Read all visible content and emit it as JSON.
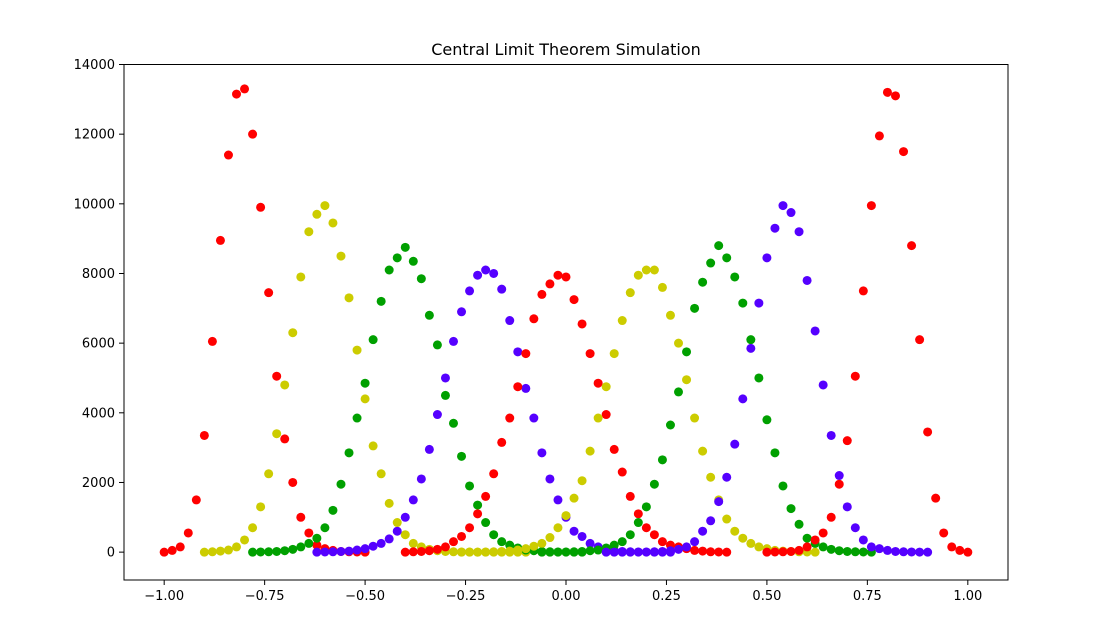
{
  "chart_data": {
    "type": "scatter",
    "title": "Central Limit Theorem Simulation",
    "xlabel": "",
    "ylabel": "",
    "xlim": [
      -1.1,
      1.1
    ],
    "ylim": [
      -800,
      14000
    ],
    "xticks": [
      -1.0,
      -0.75,
      -0.5,
      -0.25,
      0.0,
      0.25,
      0.5,
      0.75,
      1.0
    ],
    "xtick_labels": [
      "−1.00",
      "−0.75",
      "−0.50",
      "−0.25",
      "0.00",
      "0.25",
      "0.50",
      "0.75",
      "1.00"
    ],
    "yticks": [
      0,
      2000,
      4000,
      6000,
      8000,
      10000,
      12000,
      14000
    ],
    "ytick_labels": [
      "0",
      "2000",
      "4000",
      "6000",
      "8000",
      "10000",
      "12000",
      "14000"
    ],
    "grid": false,
    "series": [
      {
        "color": "#ff0000",
        "x": [
          -1.0,
          -0.98,
          -0.96,
          -0.94,
          -0.92,
          -0.9,
          -0.88,
          -0.86,
          -0.84,
          -0.82,
          -0.8,
          -0.78,
          -0.76,
          -0.74,
          -0.72,
          -0.7,
          -0.68,
          -0.66,
          -0.64,
          -0.62,
          -0.6,
          -0.58,
          -0.56,
          -0.54,
          -0.52,
          -0.5
        ],
        "y": [
          0,
          50,
          150,
          550,
          1500,
          3350,
          6050,
          8950,
          11400,
          13150,
          13300,
          12000,
          9900,
          7450,
          5050,
          3250,
          2000,
          1000,
          550,
          200,
          100,
          50,
          20,
          10,
          5,
          0
        ]
      },
      {
        "color": "#cccc00",
        "x": [
          -0.9,
          -0.88,
          -0.86,
          -0.84,
          -0.82,
          -0.8,
          -0.78,
          -0.76,
          -0.74,
          -0.72,
          -0.7,
          -0.68,
          -0.66,
          -0.64,
          -0.62,
          -0.6,
          -0.58,
          -0.56,
          -0.54,
          -0.52,
          -0.5,
          -0.48,
          -0.46,
          -0.44,
          -0.42,
          -0.4,
          -0.38,
          -0.36,
          -0.34,
          -0.32,
          -0.3,
          -0.28,
          -0.26,
          -0.24,
          -0.22,
          -0.2,
          -0.18,
          -0.16,
          -0.14,
          -0.12,
          -0.1
        ],
        "y": [
          0,
          10,
          30,
          60,
          150,
          350,
          700,
          1300,
          2250,
          3400,
          4800,
          6300,
          7900,
          9200,
          9700,
          9950,
          9450,
          8500,
          7300,
          5800,
          4400,
          3050,
          2250,
          1400,
          850,
          500,
          250,
          150,
          80,
          40,
          20,
          10,
          5,
          5,
          2,
          0,
          0,
          0,
          0,
          0,
          0
        ]
      },
      {
        "color": "#00a000",
        "x": [
          -0.78,
          -0.76,
          -0.74,
          -0.72,
          -0.7,
          -0.68,
          -0.66,
          -0.64,
          -0.62,
          -0.6,
          -0.58,
          -0.56,
          -0.54,
          -0.52,
          -0.5,
          -0.48,
          -0.46,
          -0.44,
          -0.42,
          -0.4,
          -0.38,
          -0.36,
          -0.34,
          -0.32,
          -0.3,
          -0.28,
          -0.26,
          -0.24,
          -0.22,
          -0.2,
          -0.18,
          -0.16,
          -0.14,
          -0.12,
          -0.1,
          -0.08,
          -0.06,
          -0.04,
          -0.02,
          0.0,
          0.02,
          0.04
        ],
        "y": [
          0,
          5,
          10,
          20,
          40,
          80,
          150,
          250,
          400,
          700,
          1200,
          1950,
          2850,
          3850,
          4850,
          6100,
          7200,
          8100,
          8450,
          8750,
          8350,
          7850,
          6800,
          5950,
          4500,
          3700,
          2750,
          1900,
          1350,
          850,
          500,
          300,
          200,
          120,
          60,
          40,
          20,
          10,
          5,
          2,
          0,
          0
        ]
      },
      {
        "color": "#5500ff",
        "x": [
          -0.62,
          -0.6,
          -0.58,
          -0.56,
          -0.54,
          -0.52,
          -0.5,
          -0.48,
          -0.46,
          -0.44,
          -0.42,
          -0.4,
          -0.38,
          -0.36,
          -0.34,
          -0.32,
          -0.3,
          -0.28,
          -0.26,
          -0.24,
          -0.22,
          -0.2,
          -0.18,
          -0.16,
          -0.14,
          -0.12,
          -0.1,
          -0.08,
          -0.06,
          -0.04,
          -0.02,
          0.0,
          0.02,
          0.04,
          0.06,
          0.08,
          0.1,
          0.12,
          0.14,
          0.16,
          0.18,
          0.2,
          0.22,
          0.24,
          0.26
        ],
        "y": [
          0,
          5,
          10,
          20,
          30,
          60,
          100,
          170,
          250,
          380,
          600,
          1000,
          1500,
          2100,
          2950,
          3950,
          5000,
          6050,
          6900,
          7500,
          7950,
          8100,
          8000,
          7550,
          6650,
          5750,
          4700,
          3850,
          2850,
          2100,
          1500,
          1000,
          600,
          450,
          250,
          150,
          100,
          50,
          20,
          10,
          5,
          2,
          0,
          0,
          0
        ]
      },
      {
        "color": "#ff0000",
        "x": [
          -0.4,
          -0.38,
          -0.36,
          -0.34,
          -0.32,
          -0.3,
          -0.28,
          -0.26,
          -0.24,
          -0.22,
          -0.2,
          -0.18,
          -0.16,
          -0.14,
          -0.12,
          -0.1,
          -0.08,
          -0.06,
          -0.04,
          -0.02,
          0.0,
          0.02,
          0.04,
          0.06,
          0.08,
          0.1,
          0.12,
          0.14,
          0.16,
          0.18,
          0.2,
          0.22,
          0.24,
          0.26,
          0.28,
          0.3,
          0.32,
          0.34,
          0.36,
          0.38,
          0.4
        ],
        "y": [
          0,
          10,
          20,
          40,
          80,
          150,
          300,
          450,
          700,
          1100,
          1600,
          2250,
          3150,
          3850,
          4750,
          5700,
          6700,
          7400,
          7700,
          7950,
          7900,
          7250,
          6550,
          5700,
          4850,
          3950,
          2950,
          2300,
          1600,
          1100,
          700,
          500,
          300,
          200,
          150,
          100,
          50,
          30,
          10,
          5,
          0
        ]
      },
      {
        "color": "#cccc00",
        "x": [
          -0.26,
          -0.24,
          -0.22,
          -0.2,
          -0.18,
          -0.16,
          -0.14,
          -0.12,
          -0.1,
          -0.08,
          -0.06,
          -0.04,
          -0.02,
          0.0,
          0.02,
          0.04,
          0.06,
          0.08,
          0.1,
          0.12,
          0.14,
          0.16,
          0.18,
          0.2,
          0.22,
          0.24,
          0.26,
          0.28,
          0.3,
          0.32,
          0.34,
          0.36,
          0.38,
          0.4,
          0.42,
          0.44,
          0.46,
          0.48,
          0.5,
          0.52,
          0.54,
          0.56,
          0.58,
          0.6,
          0.62
        ],
        "y": [
          0,
          0,
          0,
          5,
          10,
          20,
          30,
          60,
          100,
          170,
          250,
          420,
          700,
          1050,
          1550,
          2050,
          2900,
          3850,
          4750,
          5700,
          6650,
          7450,
          7950,
          8100,
          8100,
          7600,
          6800,
          6000,
          4950,
          3850,
          2900,
          2150,
          1500,
          950,
          600,
          400,
          250,
          150,
          100,
          50,
          30,
          20,
          10,
          5,
          0
        ]
      },
      {
        "color": "#00a000",
        "x": [
          -0.06,
          -0.04,
          -0.02,
          0.0,
          0.02,
          0.04,
          0.06,
          0.08,
          0.1,
          0.12,
          0.14,
          0.16,
          0.18,
          0.2,
          0.22,
          0.24,
          0.26,
          0.28,
          0.3,
          0.32,
          0.34,
          0.36,
          0.38,
          0.4,
          0.42,
          0.44,
          0.46,
          0.48,
          0.5,
          0.52,
          0.54,
          0.56,
          0.58,
          0.6,
          0.62,
          0.64,
          0.66,
          0.68,
          0.7,
          0.72,
          0.74,
          0.76
        ],
        "y": [
          0,
          0,
          2,
          5,
          10,
          20,
          40,
          60,
          120,
          200,
          300,
          500,
          850,
          1300,
          1950,
          2650,
          3650,
          4600,
          5750,
          7000,
          7750,
          8300,
          8800,
          8450,
          7900,
          7150,
          6100,
          5000,
          3800,
          2850,
          1900,
          1250,
          800,
          400,
          250,
          150,
          80,
          40,
          20,
          10,
          5,
          0
        ]
      },
      {
        "color": "#5500ff",
        "x": [
          0.1,
          0.12,
          0.14,
          0.16,
          0.18,
          0.2,
          0.22,
          0.24,
          0.26,
          0.28,
          0.3,
          0.32,
          0.34,
          0.36,
          0.38,
          0.4,
          0.42,
          0.44,
          0.46,
          0.48,
          0.5,
          0.52,
          0.54,
          0.56,
          0.58,
          0.6,
          0.62,
          0.64,
          0.66,
          0.68,
          0.7,
          0.72,
          0.74,
          0.76,
          0.78,
          0.8,
          0.82,
          0.84,
          0.86,
          0.88,
          0.9
        ],
        "y": [
          0,
          0,
          0,
          0,
          2,
          5,
          10,
          20,
          40,
          80,
          150,
          300,
          600,
          900,
          1450,
          2150,
          3100,
          4400,
          5850,
          7150,
          8450,
          9300,
          9950,
          9750,
          9200,
          7800,
          6350,
          4800,
          3350,
          2200,
          1300,
          700,
          350,
          150,
          100,
          50,
          20,
          10,
          5,
          2,
          0
        ]
      },
      {
        "color": "#ff0000",
        "x": [
          0.5,
          0.52,
          0.54,
          0.56,
          0.58,
          0.6,
          0.62,
          0.64,
          0.66,
          0.68,
          0.7,
          0.72,
          0.74,
          0.76,
          0.78,
          0.8,
          0.82,
          0.84,
          0.86,
          0.88,
          0.9,
          0.92,
          0.94,
          0.96,
          0.98,
          1.0
        ],
        "y": [
          0,
          5,
          10,
          20,
          50,
          150,
          350,
          550,
          1000,
          1950,
          3200,
          5050,
          7500,
          9950,
          11950,
          13200,
          13100,
          11500,
          8800,
          6100,
          3450,
          1550,
          550,
          150,
          50,
          0
        ]
      }
    ]
  }
}
